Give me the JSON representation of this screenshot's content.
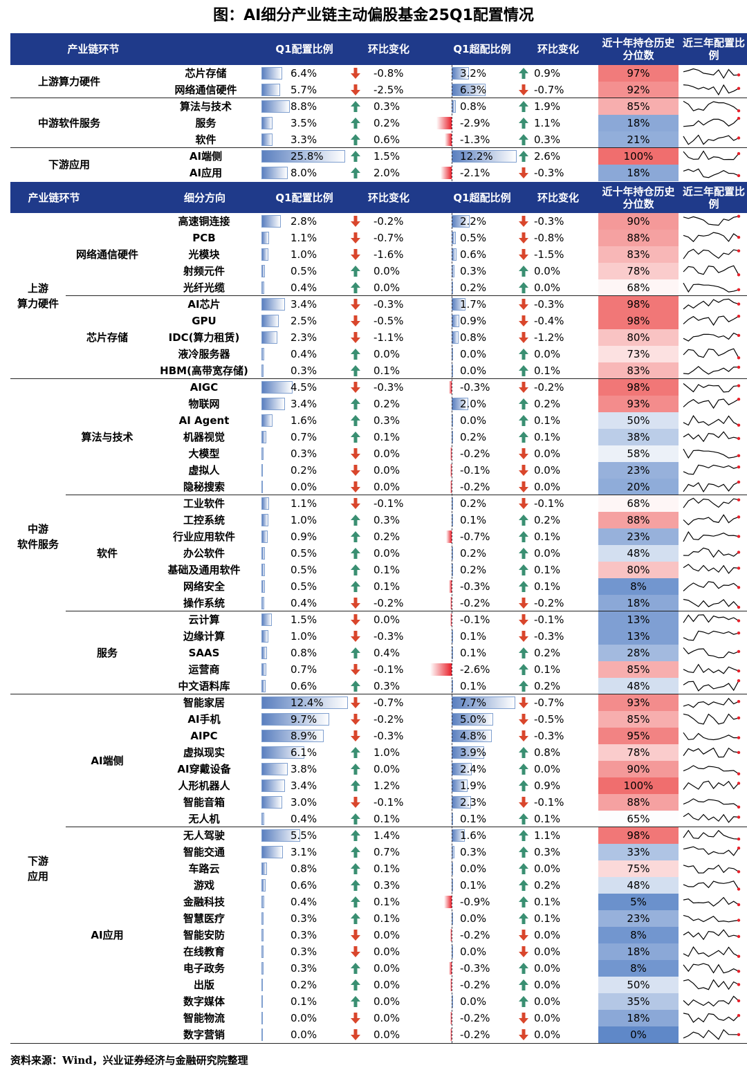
{
  "title": "图：AI细分产业链主动偏股基金25Q1配置情况",
  "source": "资料来源：Wind，兴业证券经济与金融研究院整理",
  "colors": {
    "header_bg": "#1f3a8a",
    "bar": "#5a7fbf",
    "neg_bar": "#e8202a",
    "up_arrow": "#3a8f72",
    "down_arrow": "#d9462c",
    "heat_high": "#f07a7a",
    "heat_low": "#5f88c8"
  },
  "header1": {
    "c1": "产业链环节",
    "c2": "Q1配置比例",
    "c3": "环比变化",
    "c4": "Q1超配比例",
    "c5": "环比变化",
    "c6": "近十年持仓历史分位数",
    "c7": "近三年配置比例"
  },
  "header2": {
    "c1": "产业链环节",
    "c1b": "细分方向",
    "c2": "Q1配置比例",
    "c3": "环比变化",
    "c4": "Q1超配比例",
    "c5": "环比变化",
    "c6": "近十年持仓历史分位数",
    "c7": "近三年配置比例"
  },
  "table1": {
    "groups": [
      {
        "label": "上游算力硬件",
        "rows": 2
      },
      {
        "label": "中游软件服务",
        "rows": 3
      },
      {
        "label": "下游应用",
        "rows": 2
      }
    ],
    "rows": [
      {
        "name": "芯片存储",
        "alloc": 6.4,
        "alloc_label": "6.4%",
        "chg": "-0.8%",
        "dir": "down",
        "over": 3.2,
        "over_label": "3.2%",
        "ochg": "0.9%",
        "odir": "up",
        "pct": 97,
        "pct_label": "97%"
      },
      {
        "name": "网络通信硬件",
        "alloc": 5.7,
        "alloc_label": "5.7%",
        "chg": "-2.5%",
        "dir": "down",
        "over": 6.3,
        "over_label": "6.3%",
        "ochg": "-0.7%",
        "odir": "down",
        "pct": 92,
        "pct_label": "92%"
      },
      {
        "name": "算法与技术",
        "alloc": 8.8,
        "alloc_label": "8.8%",
        "chg": "0.3%",
        "dir": "up",
        "over": 0.8,
        "over_label": "0.8%",
        "ochg": "1.9%",
        "odir": "up",
        "pct": 85,
        "pct_label": "85%"
      },
      {
        "name": "服务",
        "alloc": 3.5,
        "alloc_label": "3.5%",
        "chg": "0.2%",
        "dir": "up",
        "over": -2.9,
        "over_label": "-2.9%",
        "ochg": "1.1%",
        "odir": "up",
        "pct": 18,
        "pct_label": "18%"
      },
      {
        "name": "软件",
        "alloc": 3.3,
        "alloc_label": "3.3%",
        "chg": "0.6%",
        "dir": "up",
        "over": -1.3,
        "over_label": "-1.3%",
        "ochg": "0.3%",
        "odir": "up",
        "pct": 21,
        "pct_label": "21%"
      },
      {
        "name": "AI端侧",
        "alloc": 25.8,
        "alloc_label": "25.8%",
        "chg": "1.5%",
        "dir": "up",
        "over": 12.2,
        "over_label": "12.2%",
        "ochg": "2.6%",
        "odir": "up",
        "pct": 100,
        "pct_label": "100%"
      },
      {
        "name": "AI应用",
        "alloc": 8.0,
        "alloc_label": "8.0%",
        "chg": "2.0%",
        "dir": "up",
        "over": -2.1,
        "over_label": "-2.1%",
        "ochg": "-0.3%",
        "odir": "down",
        "pct": 18,
        "pct_label": "18%"
      }
    ]
  },
  "table2": {
    "groups": [
      {
        "label": "上游\n算力硬件",
        "rows": 10
      },
      {
        "label": "中游\n软件服务",
        "rows": 19
      },
      {
        "label": "下游\n应用",
        "rows": 21
      }
    ],
    "subgroups": [
      {
        "label": "网络通信硬件",
        "rows": 5
      },
      {
        "label": "芯片存储",
        "rows": 5
      },
      {
        "label": "算法与技术",
        "rows": 7
      },
      {
        "label": "软件",
        "rows": 7
      },
      {
        "label": "服务",
        "rows": 5
      },
      {
        "label": "AI端侧",
        "rows": 8
      },
      {
        "label": "AI应用",
        "rows": 13
      }
    ],
    "rows": [
      {
        "name": "高速铜连接",
        "alloc": 2.8,
        "alloc_label": "2.8%",
        "chg": "-0.2%",
        "dir": "down",
        "over": 2.2,
        "over_label": "2.2%",
        "ochg": "-0.3%",
        "odir": "down",
        "pct": 90,
        "pct_label": "90%"
      },
      {
        "name": "PCB",
        "alloc": 1.1,
        "alloc_label": "1.1%",
        "chg": "-0.7%",
        "dir": "down",
        "over": 0.5,
        "over_label": "0.5%",
        "ochg": "-0.8%",
        "odir": "down",
        "pct": 88,
        "pct_label": "88%"
      },
      {
        "name": "光模块",
        "alloc": 1.0,
        "alloc_label": "1.0%",
        "chg": "-1.6%",
        "dir": "down",
        "over": 0.6,
        "over_label": "0.6%",
        "ochg": "-1.5%",
        "odir": "down",
        "pct": 83,
        "pct_label": "83%"
      },
      {
        "name": "射频元件",
        "alloc": 0.5,
        "alloc_label": "0.5%",
        "chg": "0.0%",
        "dir": "up",
        "over": 0.3,
        "over_label": "0.3%",
        "ochg": "0.0%",
        "odir": "up",
        "pct": 78,
        "pct_label": "78%"
      },
      {
        "name": "光纤光缆",
        "alloc": 0.4,
        "alloc_label": "0.4%",
        "chg": "0.0%",
        "dir": "up",
        "over": 0.2,
        "over_label": "0.2%",
        "ochg": "0.0%",
        "odir": "up",
        "pct": 68,
        "pct_label": "68%"
      },
      {
        "name": "AI芯片",
        "alloc": 3.4,
        "alloc_label": "3.4%",
        "chg": "-0.3%",
        "dir": "down",
        "over": 1.7,
        "over_label": "1.7%",
        "ochg": "-0.3%",
        "odir": "down",
        "pct": 98,
        "pct_label": "98%"
      },
      {
        "name": "GPU",
        "alloc": 2.5,
        "alloc_label": "2.5%",
        "chg": "-0.5%",
        "dir": "down",
        "over": 0.9,
        "over_label": "0.9%",
        "ochg": "-0.4%",
        "odir": "down",
        "pct": 98,
        "pct_label": "98%"
      },
      {
        "name": "IDC(算力租赁)",
        "alloc": 2.3,
        "alloc_label": "2.3%",
        "chg": "-1.1%",
        "dir": "down",
        "over": 0.8,
        "over_label": "0.8%",
        "ochg": "-1.2%",
        "odir": "down",
        "pct": 80,
        "pct_label": "80%"
      },
      {
        "name": "液冷服务器",
        "alloc": 0.4,
        "alloc_label": "0.4%",
        "chg": "0.0%",
        "dir": "up",
        "over": 0.0,
        "over_label": "0.0%",
        "ochg": "0.0%",
        "odir": "up",
        "pct": 73,
        "pct_label": "73%"
      },
      {
        "name": "HBM(高带宽存储)",
        "alloc": 0.3,
        "alloc_label": "0.3%",
        "chg": "0.1%",
        "dir": "up",
        "over": 0.0,
        "over_label": "0.0%",
        "ochg": "0.1%",
        "odir": "up",
        "pct": 83,
        "pct_label": "83%"
      },
      {
        "name": "AIGC",
        "alloc": 4.5,
        "alloc_label": "4.5%",
        "chg": "-0.3%",
        "dir": "down",
        "over": -0.3,
        "over_label": "-0.3%",
        "ochg": "-0.2%",
        "odir": "down",
        "pct": 98,
        "pct_label": "98%"
      },
      {
        "name": "物联网",
        "alloc": 3.4,
        "alloc_label": "3.4%",
        "chg": "0.2%",
        "dir": "up",
        "over": 2.0,
        "over_label": "2.0%",
        "ochg": "0.2%",
        "odir": "up",
        "pct": 93,
        "pct_label": "93%"
      },
      {
        "name": "AI Agent",
        "alloc": 1.6,
        "alloc_label": "1.6%",
        "chg": "0.3%",
        "dir": "up",
        "over": 0.0,
        "over_label": "0.0%",
        "ochg": "0.1%",
        "odir": "up",
        "pct": 50,
        "pct_label": "50%"
      },
      {
        "name": "机器视觉",
        "alloc": 0.7,
        "alloc_label": "0.7%",
        "chg": "0.1%",
        "dir": "up",
        "over": 0.2,
        "over_label": "0.2%",
        "ochg": "0.1%",
        "odir": "up",
        "pct": 38,
        "pct_label": "38%"
      },
      {
        "name": "大模型",
        "alloc": 0.3,
        "alloc_label": "0.3%",
        "chg": "0.0%",
        "dir": "down",
        "over": -0.2,
        "over_label": "-0.2%",
        "ochg": "0.0%",
        "odir": "down",
        "pct": 58,
        "pct_label": "58%"
      },
      {
        "name": "虚拟人",
        "alloc": 0.2,
        "alloc_label": "0.2%",
        "chg": "0.0%",
        "dir": "down",
        "over": -0.1,
        "over_label": "-0.1%",
        "ochg": "0.0%",
        "odir": "down",
        "pct": 23,
        "pct_label": "23%"
      },
      {
        "name": "隐秘搜索",
        "alloc": 0.0,
        "alloc_label": "0.0%",
        "chg": "0.0%",
        "dir": "down",
        "over": -0.2,
        "over_label": "-0.2%",
        "ochg": "0.0%",
        "odir": "down",
        "pct": 20,
        "pct_label": "20%"
      },
      {
        "name": "工业软件",
        "alloc": 1.1,
        "alloc_label": "1.1%",
        "chg": "-0.1%",
        "dir": "down",
        "over": 0.2,
        "over_label": "0.2%",
        "ochg": "-0.1%",
        "odir": "down",
        "pct": 68,
        "pct_label": "68%"
      },
      {
        "name": "工控系统",
        "alloc": 1.0,
        "alloc_label": "1.0%",
        "chg": "0.3%",
        "dir": "up",
        "over": 0.1,
        "over_label": "0.1%",
        "ochg": "0.2%",
        "odir": "up",
        "pct": 88,
        "pct_label": "88%"
      },
      {
        "name": "行业应用软件",
        "alloc": 0.9,
        "alloc_label": "0.9%",
        "chg": "0.2%",
        "dir": "up",
        "over": -0.7,
        "over_label": "-0.7%",
        "ochg": "0.1%",
        "odir": "up",
        "pct": 23,
        "pct_label": "23%"
      },
      {
        "name": "办公软件",
        "alloc": 0.5,
        "alloc_label": "0.5%",
        "chg": "0.0%",
        "dir": "up",
        "over": 0.2,
        "over_label": "0.2%",
        "ochg": "0.0%",
        "odir": "up",
        "pct": 48,
        "pct_label": "48%"
      },
      {
        "name": "基础及通用软件",
        "alloc": 0.5,
        "alloc_label": "0.5%",
        "chg": "0.1%",
        "dir": "up",
        "over": 0.2,
        "over_label": "0.2%",
        "ochg": "0.1%",
        "odir": "up",
        "pct": 80,
        "pct_label": "80%"
      },
      {
        "name": "网络安全",
        "alloc": 0.5,
        "alloc_label": "0.5%",
        "chg": "0.1%",
        "dir": "up",
        "over": -0.3,
        "over_label": "-0.3%",
        "ochg": "0.1%",
        "odir": "up",
        "pct": 8,
        "pct_label": "8%"
      },
      {
        "name": "操作系统",
        "alloc": 0.4,
        "alloc_label": "0.4%",
        "chg": "-0.2%",
        "dir": "down",
        "over": -0.2,
        "over_label": "-0.2%",
        "ochg": "-0.2%",
        "odir": "down",
        "pct": 18,
        "pct_label": "18%"
      },
      {
        "name": "云计算",
        "alloc": 1.5,
        "alloc_label": "1.5%",
        "chg": "0.0%",
        "dir": "down",
        "over": -0.1,
        "over_label": "-0.1%",
        "ochg": "-0.1%",
        "odir": "down",
        "pct": 13,
        "pct_label": "13%"
      },
      {
        "name": "边缘计算",
        "alloc": 1.0,
        "alloc_label": "1.0%",
        "chg": "-0.3%",
        "dir": "down",
        "over": 0.1,
        "over_label": "0.1%",
        "ochg": "-0.3%",
        "odir": "down",
        "pct": 13,
        "pct_label": "13%"
      },
      {
        "name": "SAAS",
        "alloc": 0.8,
        "alloc_label": "0.8%",
        "chg": "0.4%",
        "dir": "up",
        "over": 0.1,
        "over_label": "0.1%",
        "ochg": "0.2%",
        "odir": "up",
        "pct": 28,
        "pct_label": "28%"
      },
      {
        "name": "运营商",
        "alloc": 0.7,
        "alloc_label": "0.7%",
        "chg": "-0.1%",
        "dir": "down",
        "over": -2.6,
        "over_label": "-2.6%",
        "ochg": "0.1%",
        "odir": "up",
        "pct": 85,
        "pct_label": "85%"
      },
      {
        "name": "中文语料库",
        "alloc": 0.6,
        "alloc_label": "0.6%",
        "chg": "0.3%",
        "dir": "up",
        "over": 0.1,
        "over_label": "0.1%",
        "ochg": "0.2%",
        "odir": "up",
        "pct": 48,
        "pct_label": "48%"
      },
      {
        "name": "智能家居",
        "alloc": 12.4,
        "alloc_label": "12.4%",
        "chg": "-0.7%",
        "dir": "down",
        "over": 7.7,
        "over_label": "7.7%",
        "ochg": "-0.7%",
        "odir": "down",
        "pct": 93,
        "pct_label": "93%"
      },
      {
        "name": "AI手机",
        "alloc": 9.7,
        "alloc_label": "9.7%",
        "chg": "-0.2%",
        "dir": "down",
        "over": 5.0,
        "over_label": "5.0%",
        "ochg": "-0.5%",
        "odir": "down",
        "pct": 85,
        "pct_label": "85%"
      },
      {
        "name": "AIPC",
        "alloc": 8.9,
        "alloc_label": "8.9%",
        "chg": "-0.3%",
        "dir": "down",
        "over": 4.8,
        "over_label": "4.8%",
        "ochg": "-0.3%",
        "odir": "down",
        "pct": 95,
        "pct_label": "95%"
      },
      {
        "name": "虚拟现实",
        "alloc": 6.1,
        "alloc_label": "6.1%",
        "chg": "1.0%",
        "dir": "up",
        "over": 3.9,
        "over_label": "3.9%",
        "ochg": "0.8%",
        "odir": "up",
        "pct": 78,
        "pct_label": "78%"
      },
      {
        "name": "AI穿戴设备",
        "alloc": 3.8,
        "alloc_label": "3.8%",
        "chg": "0.0%",
        "dir": "up",
        "over": 2.4,
        "over_label": "2.4%",
        "ochg": "0.0%",
        "odir": "up",
        "pct": 90,
        "pct_label": "90%"
      },
      {
        "name": "人形机器人",
        "alloc": 3.4,
        "alloc_label": "3.4%",
        "chg": "1.2%",
        "dir": "up",
        "over": 1.9,
        "over_label": "1.9%",
        "ochg": "0.9%",
        "odir": "up",
        "pct": 100,
        "pct_label": "100%"
      },
      {
        "name": "智能音箱",
        "alloc": 3.0,
        "alloc_label": "3.0%",
        "chg": "-0.1%",
        "dir": "down",
        "over": 2.3,
        "over_label": "2.3%",
        "ochg": "-0.1%",
        "odir": "down",
        "pct": 88,
        "pct_label": "88%"
      },
      {
        "name": "无人机",
        "alloc": 0.4,
        "alloc_label": "0.4%",
        "chg": "0.1%",
        "dir": "up",
        "over": 0.1,
        "over_label": "0.1%",
        "ochg": "0.1%",
        "odir": "up",
        "pct": 65,
        "pct_label": "65%"
      },
      {
        "name": "无人驾驶",
        "alloc": 5.5,
        "alloc_label": "5.5%",
        "chg": "1.4%",
        "dir": "up",
        "over": 1.6,
        "over_label": "1.6%",
        "ochg": "1.1%",
        "odir": "up",
        "pct": 98,
        "pct_label": "98%"
      },
      {
        "name": "智能交通",
        "alloc": 3.1,
        "alloc_label": "3.1%",
        "chg": "0.7%",
        "dir": "up",
        "over": 0.3,
        "over_label": "0.3%",
        "ochg": "0.3%",
        "odir": "up",
        "pct": 33,
        "pct_label": "33%"
      },
      {
        "name": "车路云",
        "alloc": 0.8,
        "alloc_label": "0.8%",
        "chg": "0.1%",
        "dir": "up",
        "over": 0.0,
        "over_label": "0.0%",
        "ochg": "0.0%",
        "odir": "up",
        "pct": 75,
        "pct_label": "75%"
      },
      {
        "name": "游戏",
        "alloc": 0.6,
        "alloc_label": "0.6%",
        "chg": "0.3%",
        "dir": "up",
        "over": 0.1,
        "over_label": "0.1%",
        "ochg": "0.2%",
        "odir": "up",
        "pct": 48,
        "pct_label": "48%"
      },
      {
        "name": "金融科技",
        "alloc": 0.4,
        "alloc_label": "0.4%",
        "chg": "0.1%",
        "dir": "up",
        "over": -0.9,
        "over_label": "-0.9%",
        "ochg": "0.1%",
        "odir": "up",
        "pct": 5,
        "pct_label": "5%"
      },
      {
        "name": "智慧医疗",
        "alloc": 0.3,
        "alloc_label": "0.3%",
        "chg": "0.1%",
        "dir": "up",
        "over": 0.0,
        "over_label": "0.0%",
        "ochg": "0.1%",
        "odir": "up",
        "pct": 23,
        "pct_label": "23%"
      },
      {
        "name": "智能安防",
        "alloc": 0.3,
        "alloc_label": "0.3%",
        "chg": "0.0%",
        "dir": "down",
        "over": -0.2,
        "over_label": "-0.2%",
        "ochg": "0.0%",
        "odir": "down",
        "pct": 8,
        "pct_label": "8%"
      },
      {
        "name": "在线教育",
        "alloc": 0.3,
        "alloc_label": "0.3%",
        "chg": "0.0%",
        "dir": "down",
        "over": 0.0,
        "over_label": "0.0%",
        "ochg": "0.0%",
        "odir": "down",
        "pct": 18,
        "pct_label": "18%"
      },
      {
        "name": "电子政务",
        "alloc": 0.3,
        "alloc_label": "0.3%",
        "chg": "0.0%",
        "dir": "up",
        "over": -0.3,
        "over_label": "-0.3%",
        "ochg": "0.0%",
        "odir": "up",
        "pct": 8,
        "pct_label": "8%"
      },
      {
        "name": "出版",
        "alloc": 0.2,
        "alloc_label": "0.2%",
        "chg": "0.0%",
        "dir": "up",
        "over": -0.2,
        "over_label": "-0.2%",
        "ochg": "0.0%",
        "odir": "up",
        "pct": 50,
        "pct_label": "50%"
      },
      {
        "name": "数字媒体",
        "alloc": 0.1,
        "alloc_label": "0.1%",
        "chg": "0.0%",
        "dir": "up",
        "over": 0.0,
        "over_label": "0.0%",
        "ochg": "0.0%",
        "odir": "up",
        "pct": 35,
        "pct_label": "35%"
      },
      {
        "name": "智能物流",
        "alloc": 0.0,
        "alloc_label": "0.0%",
        "chg": "0.0%",
        "dir": "down",
        "over": -0.2,
        "over_label": "-0.2%",
        "ochg": "0.0%",
        "odir": "down",
        "pct": 18,
        "pct_label": "18%"
      },
      {
        "name": "数字营销",
        "alloc": 0.0,
        "alloc_label": "0.0%",
        "chg": "0.0%",
        "dir": "down",
        "over": -0.2,
        "over_label": "-0.2%",
        "ochg": "0.0%",
        "odir": "down",
        "pct": 0,
        "pct_label": "0%"
      }
    ]
  },
  "chart_data": {
    "type": "table",
    "title": "图：AI细分产业链主动偏股基金25Q1配置情况",
    "columns": [
      "Q1配置比例",
      "环比变化",
      "Q1超配比例",
      "环比变化",
      "近十年持仓历史分位数",
      "近三年配置比例"
    ],
    "note": "sparkline column shows trend only; values not labeled"
  }
}
